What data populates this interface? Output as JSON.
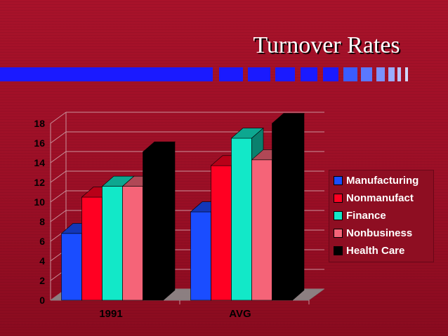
{
  "slide": {
    "title": "Turnover Rates"
  },
  "colors": {
    "background": "#9b0f26",
    "decor_bar": "#1a1aff",
    "Manufacturing": "#1a4dff",
    "Nonmanufact": "#ff0022",
    "Finance": "#12e8c8",
    "Nonbusiness": "#f56478",
    "Health Care": "#000000"
  },
  "chart_data": {
    "type": "bar",
    "title": "Turnover Rates",
    "categories": [
      "1991",
      "AVG"
    ],
    "series": [
      {
        "name": "Manufacturing",
        "values": [
          6.8,
          9.0
        ]
      },
      {
        "name": "Nonmanufact",
        "values": [
          10.5,
          13.7
        ]
      },
      {
        "name": "Finance",
        "values": [
          11.6,
          16.5
        ]
      },
      {
        "name": "Nonbusiness",
        "values": [
          11.6,
          14.3
        ]
      },
      {
        "name": "Health Care",
        "values": [
          15.1,
          18.0
        ]
      }
    ],
    "ylim": [
      0,
      18
    ],
    "yticks": [
      "0",
      "2",
      "4",
      "6",
      "8",
      "10",
      "12",
      "14",
      "16",
      "18"
    ],
    "grid": true,
    "legend_position": "right",
    "three_d": true
  }
}
